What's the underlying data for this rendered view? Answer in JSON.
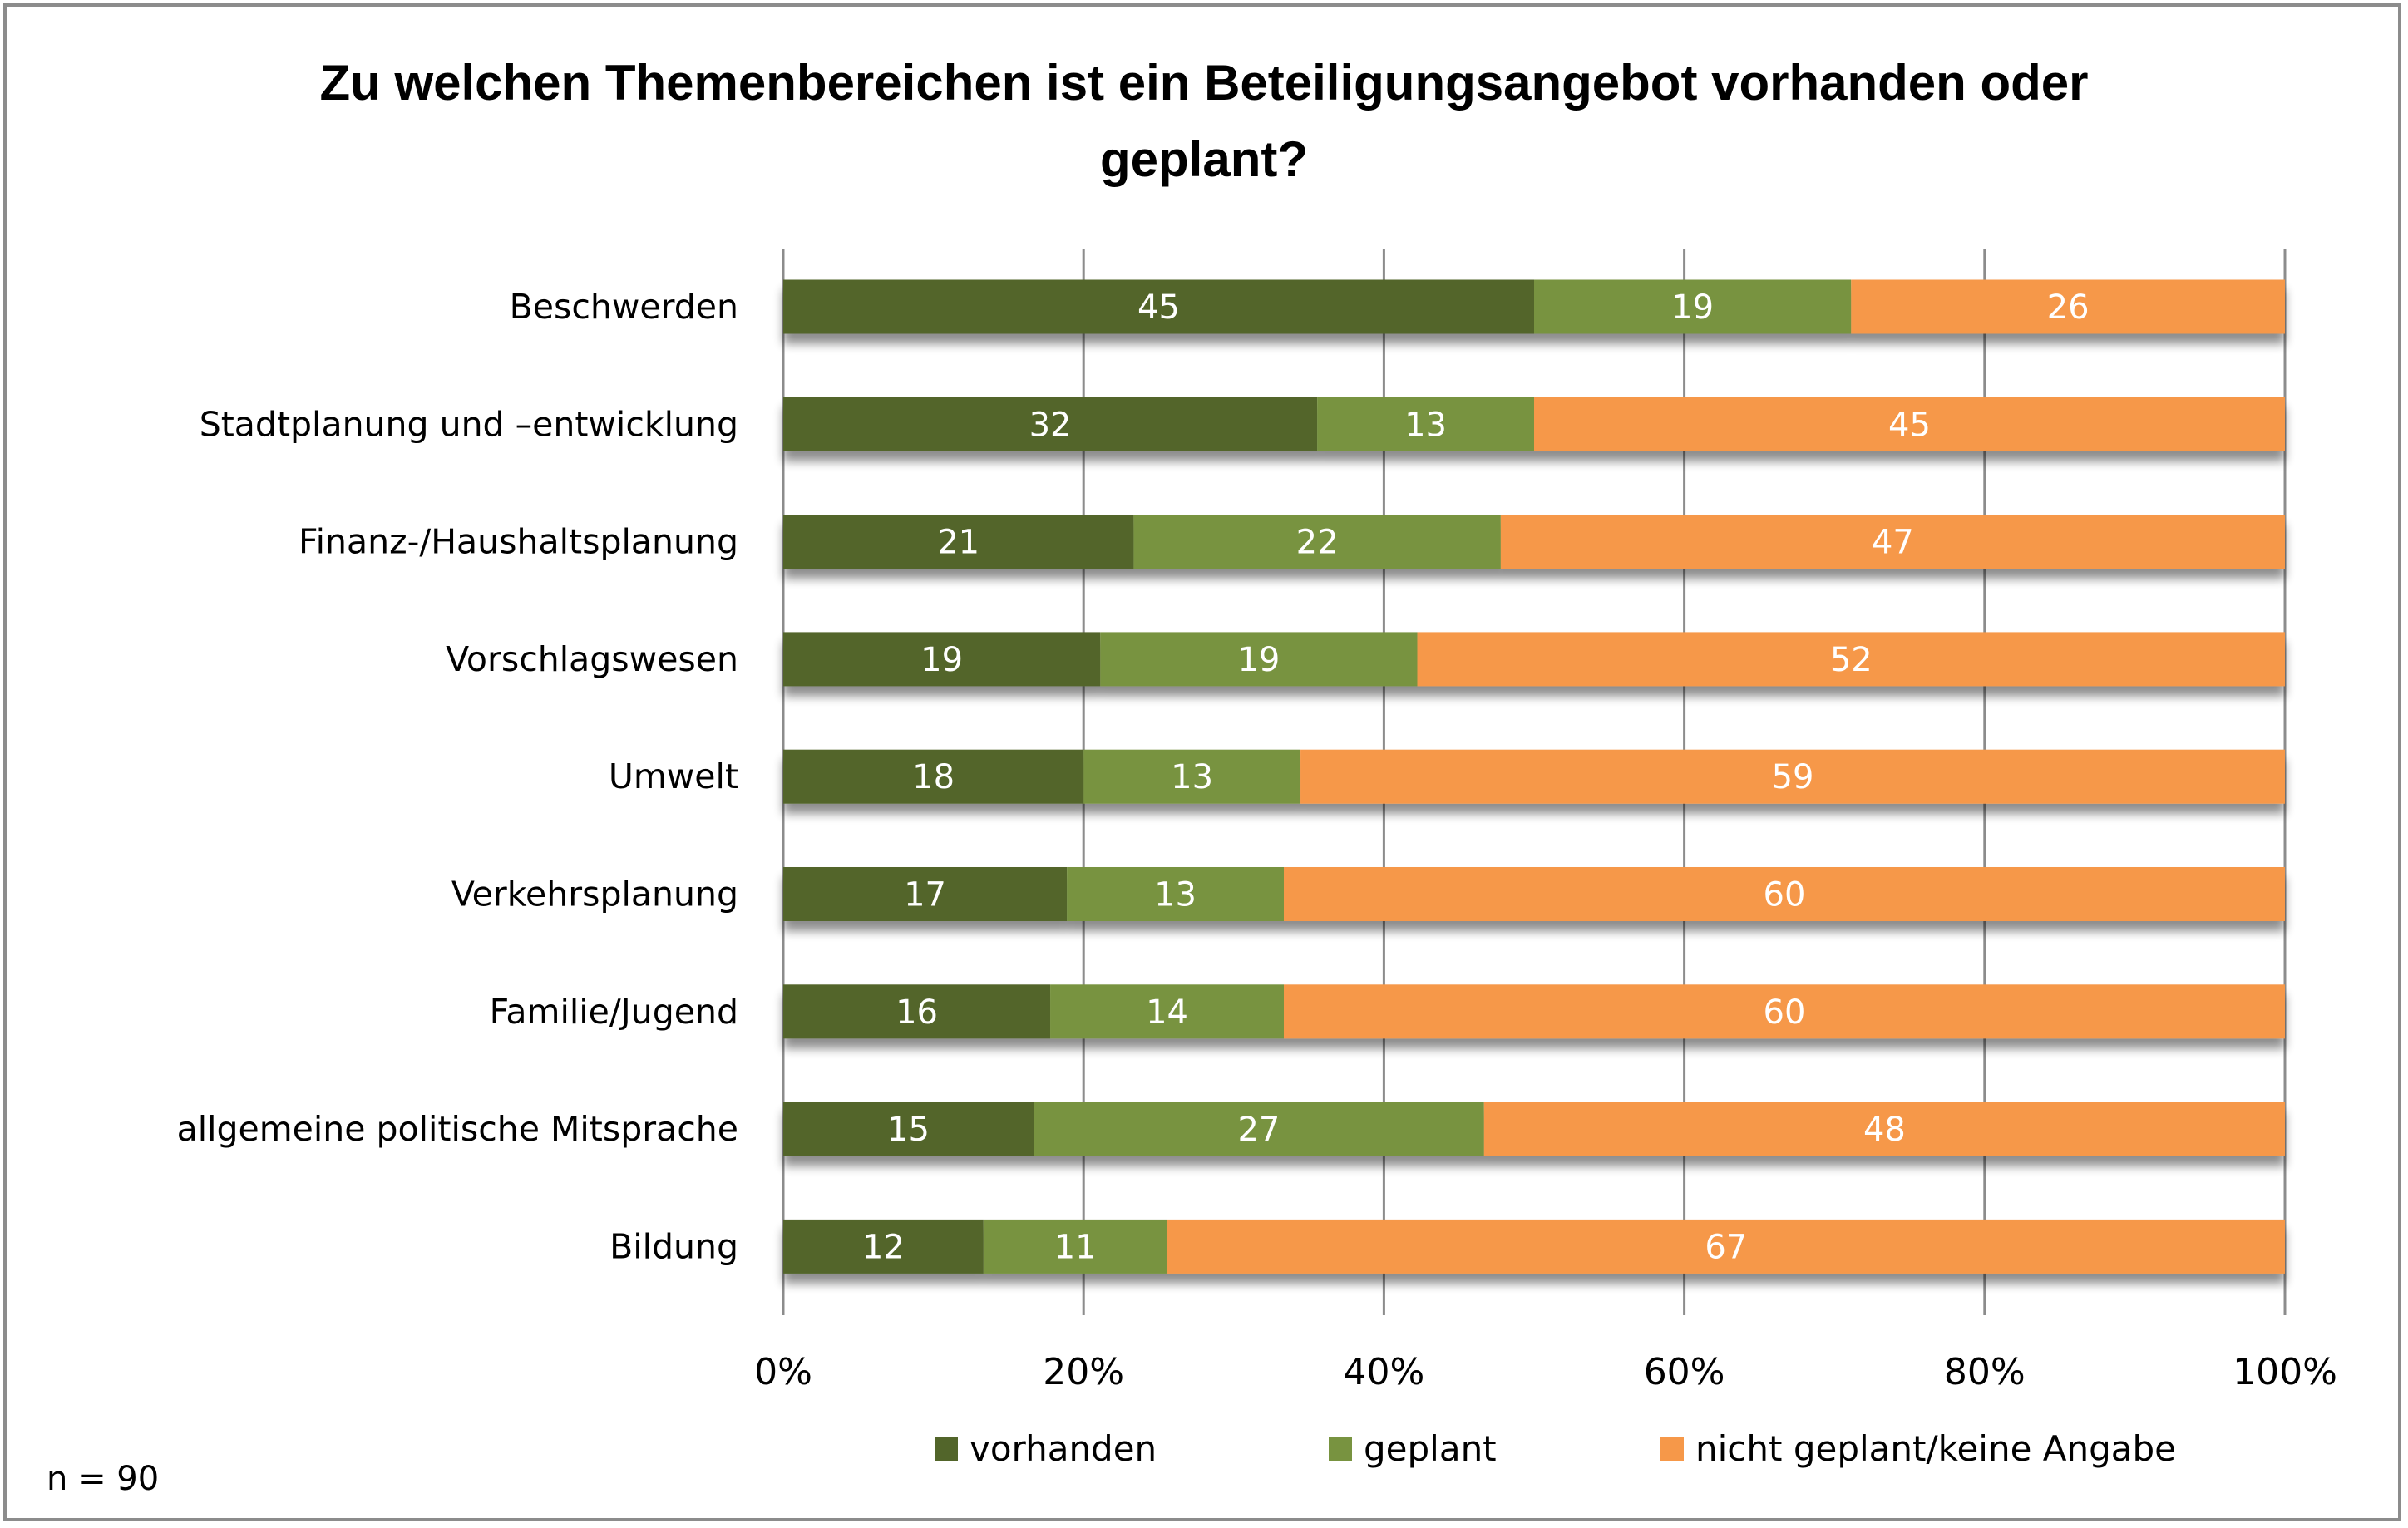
{
  "chart_data": {
    "type": "bar",
    "orientation": "horizontal",
    "stacked": "percent",
    "title": "Zu welchen Themenbereichen ist ein Beteiligungsangebot vorhanden oder geplant?",
    "title_lines": [
      "Zu welchen Themenbereichen ist ein Beteiligungsangebot vorhanden oder",
      "geplant?"
    ],
    "categories": [
      "Beschwerden",
      "Stadtplanung und –entwicklung",
      "Finanz-/Haushaltsplanung",
      "Vorschlagswesen",
      "Umwelt",
      "Verkehrsplanung",
      "Familie/Jugend",
      "allgemeine politische Mitsprache",
      "Bildung"
    ],
    "series": [
      {
        "name": "vorhanden",
        "color": "#52652a",
        "values": [
          45,
          32,
          21,
          19,
          18,
          17,
          16,
          15,
          12
        ]
      },
      {
        "name": "geplant",
        "color": "#789340",
        "values": [
          19,
          13,
          22,
          19,
          13,
          13,
          14,
          27,
          11
        ]
      },
      {
        "name": "nicht geplant/keine Angabe",
        "color": "#f69849",
        "values": [
          26,
          45,
          47,
          52,
          59,
          60,
          60,
          48,
          67
        ]
      }
    ],
    "xlabel": "",
    "ylabel": "",
    "xlim": [
      0,
      100
    ],
    "xticks": [
      "0%",
      "20%",
      "40%",
      "60%",
      "80%",
      "100%"
    ],
    "grid": true,
    "legend_position": "bottom",
    "data_labels": true,
    "note": "n = 90"
  }
}
